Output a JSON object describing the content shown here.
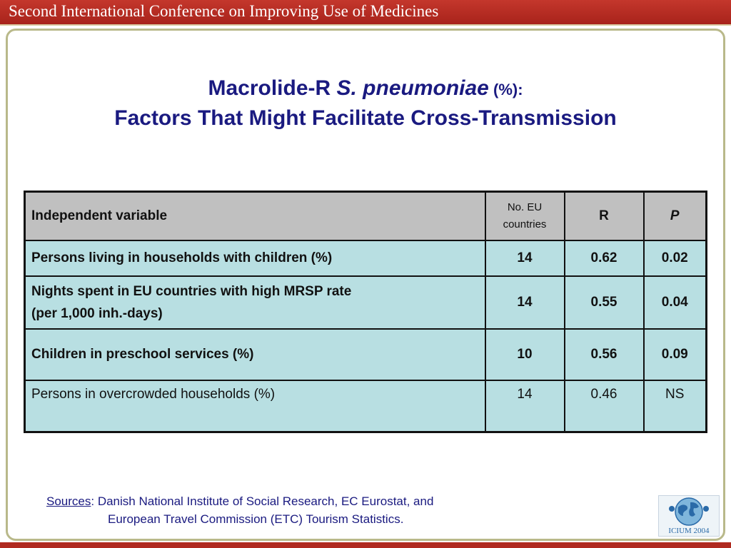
{
  "header": {
    "banner": "Second International Conference on Improving Use of Medicines"
  },
  "slide": {
    "title_part1": "Macrolide-R ",
    "title_italic": "S. pneumoniae",
    "title_pct": " (%):",
    "title_line2": "Factors That Might Facilitate Cross-Transmission"
  },
  "table": {
    "headers": {
      "variable": "Independent variable",
      "countries_line1": "No. EU",
      "countries_line2": "countries",
      "r": "R",
      "p": "P"
    },
    "rows": [
      {
        "variable_line1": "Persons living in households with children (%)",
        "variable_line2": "",
        "countries": "14",
        "r": "0.62",
        "p": "0.02"
      },
      {
        "variable_line1": "Nights spent in EU countries with high MRSP rate",
        "variable_line2": "(per 1,000 inh.-days)",
        "countries": "14",
        "r": "0.55",
        "p": "0.04"
      },
      {
        "variable_line1": "Children in preschool services (%)",
        "variable_line2": "",
        "countries": "10",
        "r": "0.56",
        "p": "0.09"
      },
      {
        "variable_line1": "Persons in overcrowded households (%)",
        "variable_line2": "",
        "countries": "14",
        "r": "0.46",
        "p": "NS"
      }
    ]
  },
  "footer": {
    "sources_label": "Sources",
    "sources_line1": ": Danish National Institute of Social Research, EC Eurostat, and",
    "sources_line2": "European Travel Commission (ETC) Tourism Statistics.",
    "logo_text": "ICIUM 2004"
  },
  "icons": {
    "logo": "icium-globe-logo"
  }
}
